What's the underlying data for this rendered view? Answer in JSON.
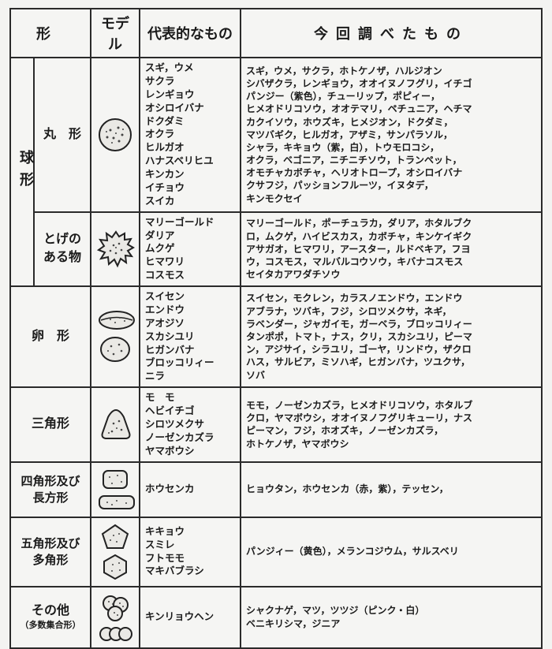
{
  "headers": {
    "shape": "形",
    "model": "モデル",
    "representative": "代表的なもの",
    "studied": "今回調べたもの"
  },
  "group_sphere_label": "球形",
  "rows": [
    {
      "shape_label": "丸　形",
      "rep": "スギ，ウメ\nサクラ\nレンギョウ\nオシロイバナ\nドクダミ\nオクラ\nヒルガオ\nハナスベリヒユ\nキンカン\nイチョウ\nスイカ",
      "study": "スギ，ウメ，サクラ，ホトケノザ，ハルジオン\nシバザクラ，レンギョウ，オオイヌノフグリ，イチゴ\nパンジー（紫色），チューリップ，ポピィー，\nヒメオドリコソウ，オオテマリ，ペチュニア，ヘチマ\nカクイソウ，ホウズキ，ヒメジオン，ドクダミ，\nマツバギク，ヒルガオ，アザミ，サンパラソル，\nシャラ，キキョウ（紫，白），トウモロコシ，\nオクラ，ベゴニア，ニチニチソウ，トランペット，\nオモチャカボチャ，ヘリオトロープ，オシロイバナ\nクサフジ，パッションフルーツ，イヌタデ，\nキンモクセイ"
    },
    {
      "shape_label": "とげの\nある物",
      "rep": "マリーゴールド\nダリア\nムクゲ\nヒマワリ\nコスモス",
      "study": "マリーゴールド，ポーチュラカ，ダリア，ホタルブク\nロ，ムクゲ，ハイビスカス，カボチャ，キンケイギク\nアサガオ，ヒマワリ，アースター，ルドベキア，フヨ\nウ，コスモス，マルバルコウソウ，キバナコスモス\nセイタカアワダチソウ"
    },
    {
      "shape_label": "卵　形",
      "rep": "スイセン\nエンドウ\nアオジソ\nスカシユリ\nヒガンバナ\nブロッコリィー\nニラ",
      "study": "スイセン，モクレン，カラスノエンドウ，エンドウ\nアブラナ，ツバキ，フジ，シロツメクサ，ネギ，\nラベンダー，ジャガイモ，ガーベラ，ブロッコリィー\nタンポポ，トマト，ナス，クリ，スカシユリ，ピーマ\nン，アジサイ，シラユリ，ゴーヤ，リンドウ，ザクロ\nハス，サルビア，ミソハギ，ヒガンバナ，ツユクサ，\nソバ"
    },
    {
      "shape_label": "三角形",
      "rep": "モ　モ\nヘビイチゴ\nシロツメクサ\nノーゼンカズラ\nヤマボウシ",
      "study": "モモ，ノーゼンカズラ，ヒメオドリコソウ，ホタルブ\nクロ，ヤマボウシ，オオイヌノフグリキューリ，ナス\nピーマン，フジ，ホオズキ，ノーゼンカズラ，\nホトケノザ，ヤマボウシ"
    },
    {
      "shape_label": "四角形及び\n長方形",
      "rep": "ホウセンカ",
      "study": "ヒョウタン，ホウセンカ（赤，紫），テッセン，"
    },
    {
      "shape_label": "五角形及び\n多角形",
      "rep": "キキョウ\nスミレ\nフトモモ\nマキバブラシ",
      "study": "パンジィー（黄色），メランコジウム，サルスベリ"
    },
    {
      "shape_label": "その他",
      "shape_sub": "（多数集合形）",
      "rep": "キンリョウヘン",
      "study": "シャクナゲ，マツ，ツツジ（ピンク・白）\nベニキリシマ，ジニア"
    }
  ],
  "style": {
    "border_color": "#2a2a2a",
    "bg": "#f3f3f1",
    "ink": "#1a1a1a",
    "header_fontsize": 18,
    "label_fontsize": 16,
    "rep_fontsize": 12.5,
    "study_fontsize": 12
  }
}
